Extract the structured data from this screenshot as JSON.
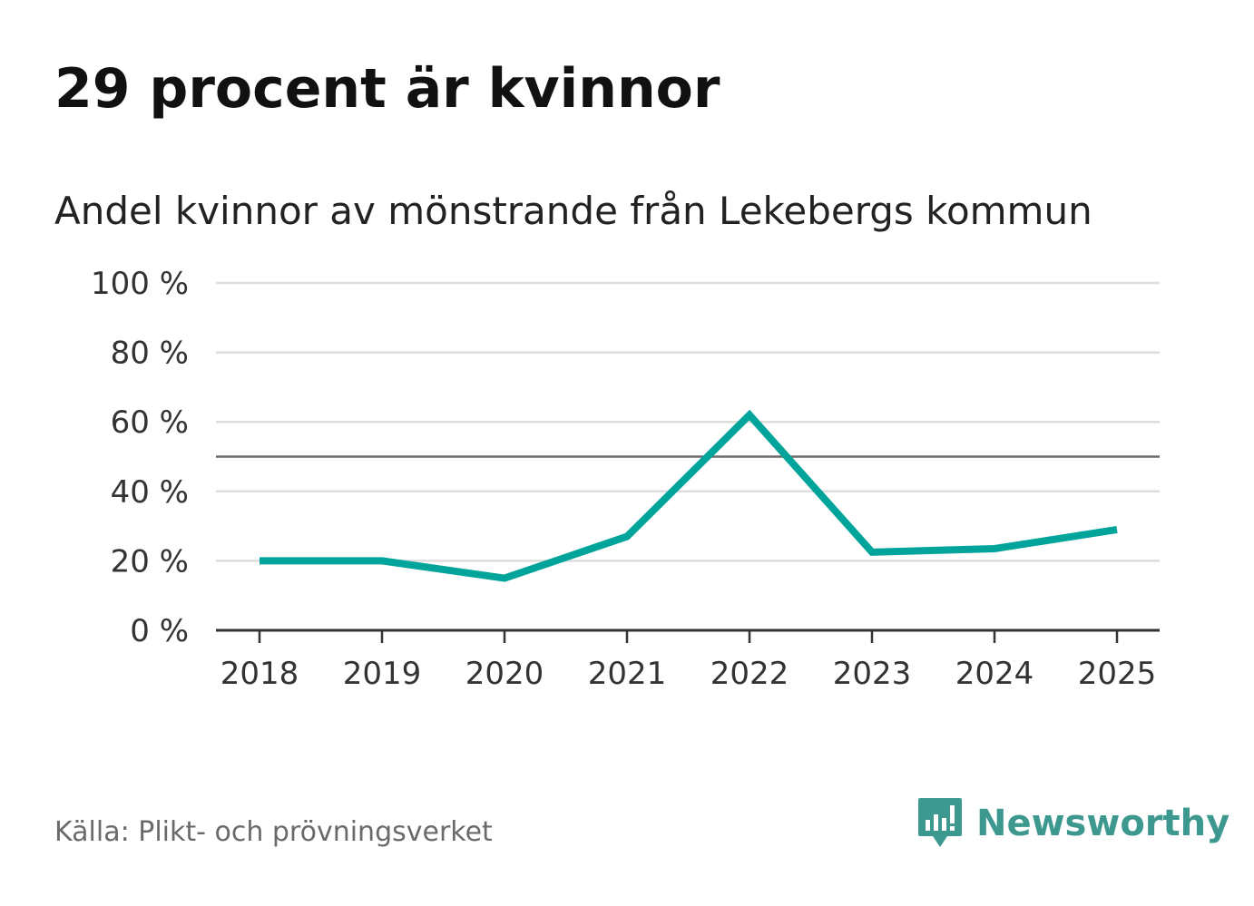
{
  "chart_data": {
    "type": "line",
    "title": "29 procent är kvinnor",
    "subtitle": "Andel kvinnor av mönstrande från Lekebergs kommun",
    "x": [
      "2018",
      "2019",
      "2020",
      "2021",
      "2022",
      "2023",
      "2024",
      "2025"
    ],
    "series": [
      {
        "name": "Andel kvinnor",
        "values": [
          20,
          20,
          15,
          27,
          62,
          22.5,
          23.5,
          29
        ],
        "color": "#00a49a"
      }
    ],
    "reference_line": {
      "value": 50,
      "color": "#6b6b6b"
    },
    "ylim": [
      0,
      100
    ],
    "yticks": [
      0,
      20,
      40,
      60,
      80,
      100
    ],
    "ytick_labels": [
      "0 %",
      "20 %",
      "40 %",
      "60 %",
      "80 %",
      "100 %"
    ],
    "grid": true,
    "xlabel": "",
    "ylabel": ""
  },
  "source": "Källa: Plikt- och prövningsverket",
  "brand": {
    "name": "Newsworthy",
    "color": "#3d9990"
  }
}
